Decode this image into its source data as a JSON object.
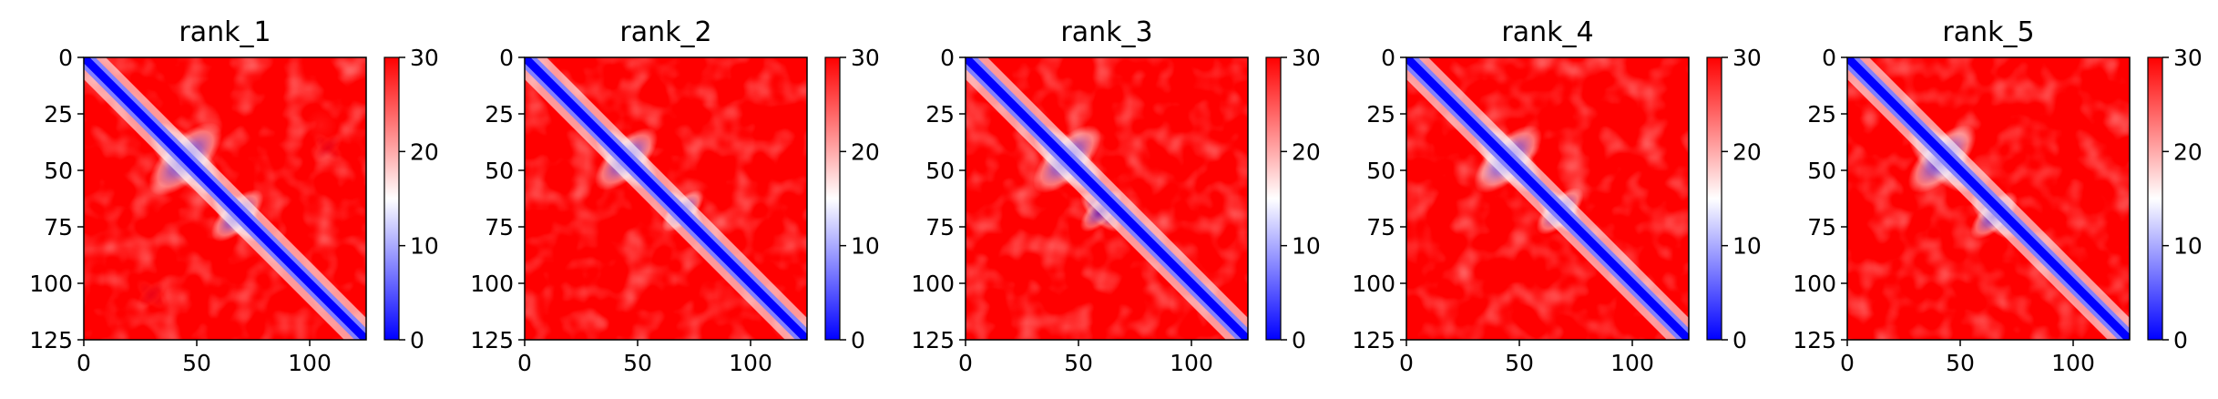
{
  "chart_data": [
    {
      "type": "heatmap",
      "title": "rank_1",
      "x_ticks": [
        "0",
        "50",
        "100"
      ],
      "y_ticks": [
        "0",
        "25",
        "50",
        "75",
        "100",
        "125"
      ],
      "xlim": [
        0,
        125
      ],
      "ylim": [
        125,
        0
      ],
      "colorbar": {
        "ticks": [
          "0",
          "10",
          "20",
          "30"
        ],
        "range": [
          0,
          30
        ],
        "colors": {
          "low": "#0000ff",
          "mid": "#ffffff",
          "high": "#ff0000"
        }
      },
      "features": [
        {
          "row": 45,
          "col": 45,
          "half_width": 14,
          "value_pct": 10
        },
        {
          "row": 70,
          "col": 68,
          "half_width": 10,
          "value_pct": 12
        },
        {
          "row": 40,
          "col": 108,
          "half_width": 6,
          "value_pct": 55
        },
        {
          "row": 105,
          "col": 30,
          "half_width": 6,
          "value_pct": 55
        }
      ]
    },
    {
      "type": "heatmap",
      "title": "rank_2",
      "x_ticks": [
        "0",
        "50",
        "100"
      ],
      "y_ticks": [
        "0",
        "25",
        "50",
        "75",
        "100",
        "125"
      ],
      "xlim": [
        0,
        125
      ],
      "ylim": [
        125,
        0
      ],
      "colorbar": {
        "ticks": [
          "0",
          "10",
          "20",
          "30"
        ],
        "range": [
          0,
          30
        ],
        "colors": {
          "low": "#0000ff",
          "mid": "#ffffff",
          "high": "#ff0000"
        }
      },
      "features": [
        {
          "row": 45,
          "col": 45,
          "half_width": 12,
          "value_pct": 12
        },
        {
          "row": 68,
          "col": 70,
          "half_width": 8,
          "value_pct": 15
        }
      ]
    },
    {
      "type": "heatmap",
      "title": "rank_3",
      "x_ticks": [
        "0",
        "50",
        "100"
      ],
      "y_ticks": [
        "0",
        "25",
        "50",
        "75",
        "100",
        "125"
      ],
      "xlim": [
        0,
        125
      ],
      "ylim": [
        125,
        0
      ],
      "colorbar": {
        "ticks": [
          "0",
          "10",
          "20",
          "30"
        ],
        "range": [
          0,
          30
        ],
        "colors": {
          "low": "#0000ff",
          "mid": "#ffffff",
          "high": "#ff0000"
        }
      },
      "features": [
        {
          "row": 45,
          "col": 45,
          "half_width": 13,
          "value_pct": 10
        },
        {
          "row": 68,
          "col": 60,
          "half_width": 8,
          "value_pct": 20
        }
      ]
    },
    {
      "type": "heatmap",
      "title": "rank_4",
      "x_ticks": [
        "0",
        "50",
        "100"
      ],
      "y_ticks": [
        "0",
        "25",
        "50",
        "75",
        "100",
        "125"
      ],
      "xlim": [
        0,
        125
      ],
      "ylim": [
        125,
        0
      ],
      "colorbar": {
        "ticks": [
          "0",
          "10",
          "20",
          "30"
        ],
        "range": [
          0,
          30
        ],
        "colors": {
          "low": "#0000ff",
          "mid": "#ffffff",
          "high": "#ff0000"
        }
      },
      "features": [
        {
          "row": 45,
          "col": 45,
          "half_width": 13,
          "value_pct": 10
        },
        {
          "row": 68,
          "col": 68,
          "half_width": 9,
          "value_pct": 12
        }
      ]
    },
    {
      "type": "heatmap",
      "title": "rank_5",
      "x_ticks": [
        "0",
        "50",
        "100"
      ],
      "y_ticks": [
        "0",
        "25",
        "50",
        "75",
        "100",
        "125"
      ],
      "xlim": [
        0,
        125
      ],
      "ylim": [
        125,
        0
      ],
      "colorbar": {
        "ticks": [
          "0",
          "10",
          "20",
          "30"
        ],
        "range": [
          0,
          30
        ],
        "colors": {
          "low": "#0000ff",
          "mid": "#ffffff",
          "high": "#ff0000"
        }
      },
      "features": [
        {
          "row": 45,
          "col": 42,
          "half_width": 13,
          "value_pct": 10
        },
        {
          "row": 70,
          "col": 65,
          "half_width": 9,
          "value_pct": 14
        }
      ]
    }
  ]
}
